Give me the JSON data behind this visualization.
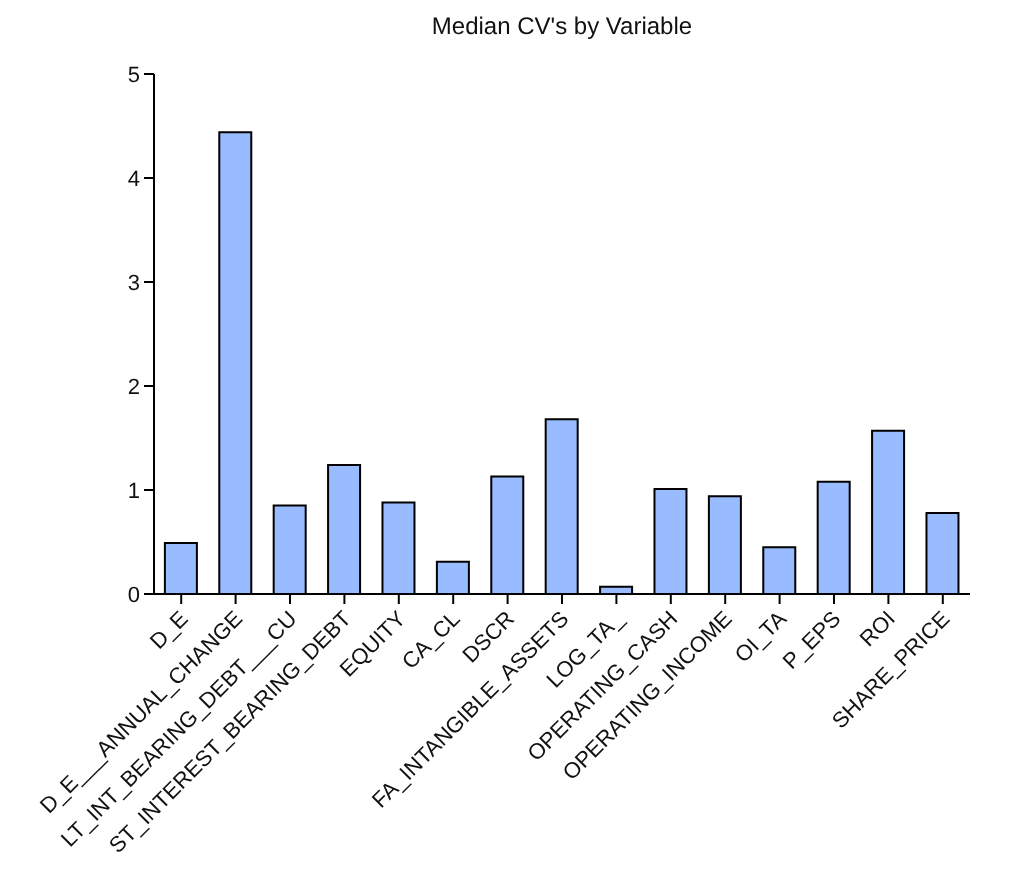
{
  "chart_data": {
    "type": "bar",
    "title": "Median CV's by Variable",
    "categories": [
      "D_E",
      "D_E___ANNUAL_CHANGE",
      "LT_INT_BEARING_DEBT___CU",
      "ST_INTEREST_BEARING_DEBT",
      "EQUITY",
      "CA_CL",
      "DSCR",
      "FA_INTANGIBLE_ASSETS",
      "LOG_TA_",
      "OPERATING_CASH",
      "OPERATING_INCOME",
      "OI_TA",
      "P_EPS",
      "ROI",
      "SHARE_PRICE"
    ],
    "values": [
      0.49,
      4.44,
      0.85,
      1.24,
      0.88,
      0.31,
      1.13,
      1.68,
      0.07,
      1.01,
      0.94,
      0.45,
      1.08,
      1.57,
      0.78
    ],
    "color": "#99bbff",
    "ylim": [
      0,
      5
    ],
    "yticks": [
      0,
      1,
      2,
      3,
      4,
      5
    ],
    "grid": false,
    "legend": false
  }
}
